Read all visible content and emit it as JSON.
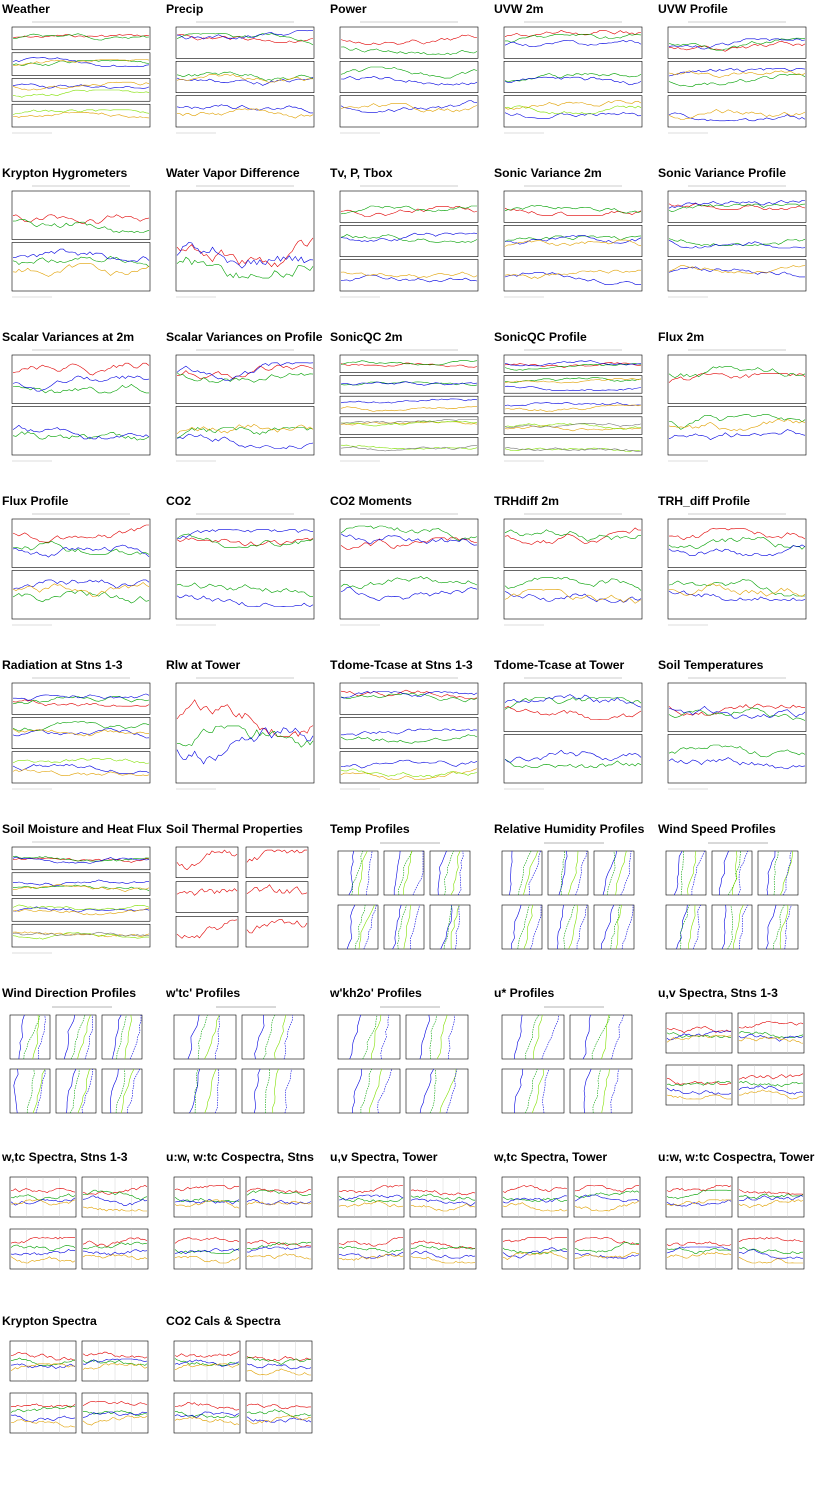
{
  "page": {
    "panels": [
      {
        "title": "Weather",
        "kind": "ts",
        "panes": 4
      },
      {
        "title": "Precip",
        "kind": "ts",
        "panes": 3
      },
      {
        "title": "Power",
        "kind": "ts",
        "panes": 3
      },
      {
        "title": "UVW 2m",
        "kind": "ts",
        "panes": 3
      },
      {
        "title": "UVW Profile",
        "kind": "ts",
        "panes": 3
      },
      {
        "title": "Krypton Hygrometers",
        "kind": "ts",
        "panes": 2
      },
      {
        "title": "Water Vapor Difference",
        "kind": "ts",
        "panes": 1
      },
      {
        "title": "Tv, P, Tbox",
        "kind": "ts",
        "panes": 3
      },
      {
        "title": "Sonic Variance 2m",
        "kind": "ts",
        "panes": 3
      },
      {
        "title": "Sonic Variance Profile",
        "kind": "ts",
        "panes": 3
      },
      {
        "title": "Scalar Variances at 2m",
        "kind": "ts",
        "panes": 2
      },
      {
        "title": "Scalar Variances on Profile",
        "kind": "ts",
        "panes": 2
      },
      {
        "title": "SonicQC 2m",
        "kind": "ts",
        "panes": 5
      },
      {
        "title": "SonicQC Profile",
        "kind": "ts",
        "panes": 5
      },
      {
        "title": "Flux 2m",
        "kind": "ts",
        "panes": 2
      },
      {
        "title": "Flux Profile",
        "kind": "ts",
        "panes": 2
      },
      {
        "title": "CO2",
        "kind": "ts",
        "panes": 2
      },
      {
        "title": "CO2 Moments",
        "kind": "ts",
        "panes": 2
      },
      {
        "title": "TRHdiff 2m",
        "kind": "ts",
        "panes": 2
      },
      {
        "title": "TRH_diff Profile",
        "kind": "ts",
        "panes": 2
      },
      {
        "title": "Radiation at Stns 1-3",
        "kind": "ts",
        "panes": 3
      },
      {
        "title": "Rlw at Tower",
        "kind": "ts",
        "panes": 1
      },
      {
        "title": "Tdome-Tcase at Stns 1-3",
        "kind": "ts",
        "panes": 3
      },
      {
        "title": "Tdome-Tcase at Tower",
        "kind": "ts",
        "panes": 2
      },
      {
        "title": "Soil Temperatures",
        "kind": "ts",
        "panes": 2
      },
      {
        "title": "Soil Moisture and Heat Flux",
        "kind": "ts",
        "panes": 4
      },
      {
        "title": "Soil Thermal Properties",
        "kind": "grid",
        "panes": 6
      },
      {
        "title": "Temp Profiles",
        "kind": "prof",
        "panes": 6
      },
      {
        "title": "Relative Humidity Profiles",
        "kind": "prof",
        "panes": 6
      },
      {
        "title": "Wind Speed Profiles",
        "kind": "prof",
        "panes": 6
      },
      {
        "title": "Wind Direction Profiles",
        "kind": "prof",
        "panes": 6
      },
      {
        "title": "w'tc' Profiles",
        "kind": "prof",
        "panes": 4
      },
      {
        "title": "w'kh2o' Profiles",
        "kind": "prof",
        "panes": 4
      },
      {
        "title": "u* Profiles",
        "kind": "prof",
        "panes": 4
      },
      {
        "title": "u,v Spectra, Stns 1-3",
        "kind": "spec",
        "panes": 4
      },
      {
        "title": "w,tc Spectra, Stns 1-3",
        "kind": "spec",
        "panes": 4
      },
      {
        "title": "u:w, w:tc Cospectra, Stns",
        "kind": "spec",
        "panes": 4
      },
      {
        "title": "u,v Spectra, Tower",
        "kind": "spec",
        "panes": 4
      },
      {
        "title": "w,tc Spectra, Tower",
        "kind": "spec",
        "panes": 4
      },
      {
        "title": "u:w, w:tc Cospectra, Tower",
        "kind": "spec",
        "panes": 4
      },
      {
        "title": "Krypton Spectra",
        "kind": "spec",
        "panes": 4
      },
      {
        "title": "CO2 Cals & Spectra",
        "kind": "spec",
        "panes": 4
      }
    ]
  },
  "colors": {
    "red": "#e00000",
    "green": "#00a000",
    "blue": "#0000e0",
    "orange": "#e0a000",
    "lime": "#80e000",
    "gray": "#777777",
    "frame": "#000000"
  }
}
